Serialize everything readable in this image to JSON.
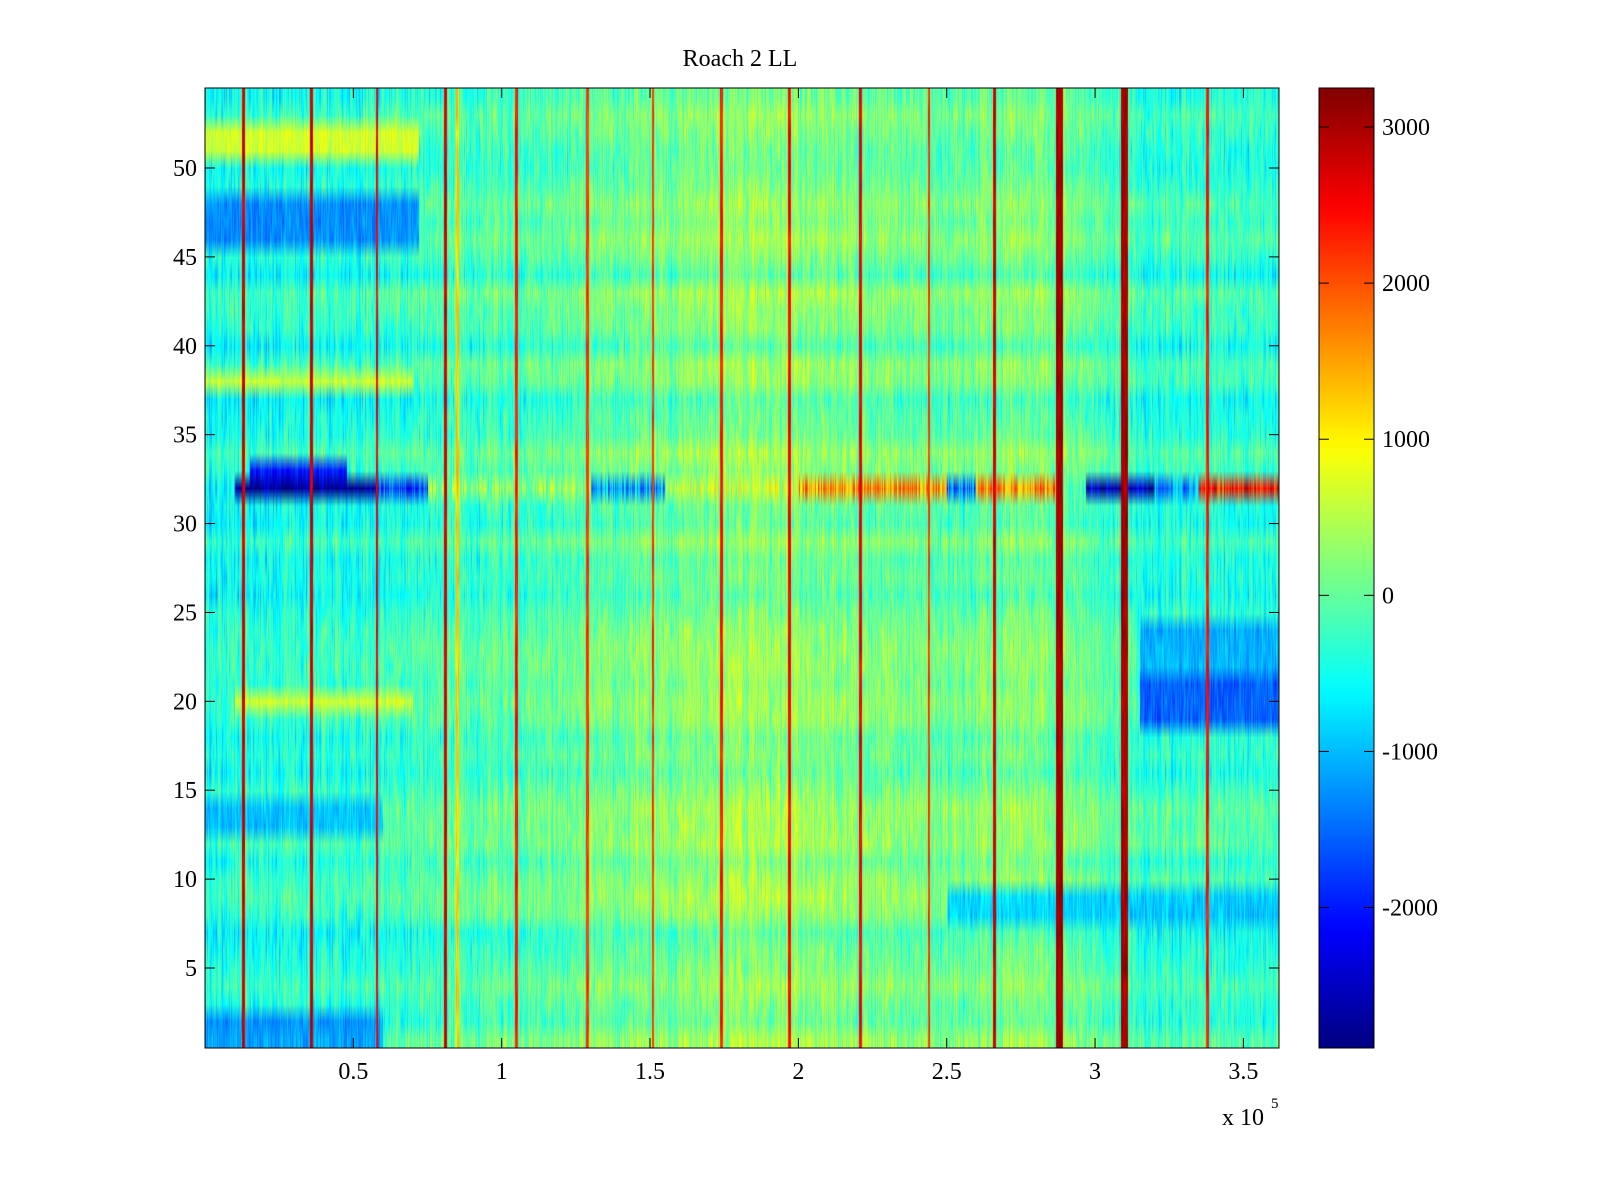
{
  "chart_data": {
    "type": "heatmap",
    "title": "Roach 2 LL",
    "xlabel": "",
    "ylabel": "",
    "x_exponent_label": {
      "base": "x 10",
      "exponent": "5"
    },
    "xlim": [
      0,
      3.62
    ],
    "ylim": [
      0.5,
      54.5
    ],
    "x_ticks": [
      0.5,
      1,
      1.5,
      2,
      2.5,
      3,
      3.5
    ],
    "x_tick_labels": [
      "0.5",
      "1",
      "1.5",
      "2",
      "2.5",
      "3",
      "3.5"
    ],
    "y_ticks": [
      5,
      10,
      15,
      20,
      25,
      30,
      35,
      40,
      45,
      50
    ],
    "y_tick_labels": [
      "5",
      "10",
      "15",
      "20",
      "25",
      "30",
      "35",
      "40",
      "45",
      "50"
    ],
    "rows": 54,
    "colormap": "jet",
    "clim": [
      -2900,
      3250
    ],
    "colorbar": {
      "ticks": [
        -2000,
        -1000,
        0,
        1000,
        2000,
        3000
      ],
      "tick_labels": [
        "-2000",
        "-1000",
        "0",
        "1000",
        "2000",
        "3000"
      ]
    },
    "grid": false,
    "baseline_profile": {
      "x": [
        0,
        0.5,
        1.0,
        1.5,
        1.8,
        2.0,
        2.2,
        2.5,
        2.8,
        3.0,
        3.2,
        3.62
      ],
      "value": [
        -450,
        -350,
        -150,
        50,
        250,
        200,
        100,
        0,
        150,
        -100,
        -300,
        -350
      ]
    },
    "vertical_stripes": [
      {
        "x": 0.13,
        "value": 3000
      },
      {
        "x": 0.36,
        "value": 3000
      },
      {
        "x": 0.58,
        "value": 2800
      },
      {
        "x": 0.81,
        "value": 3000
      },
      {
        "x": 0.85,
        "value": 1500
      },
      {
        "x": 1.05,
        "value": 2600
      },
      {
        "x": 1.29,
        "value": 2400
      },
      {
        "x": 1.51,
        "value": 2400
      },
      {
        "x": 1.74,
        "value": 2600
      },
      {
        "x": 1.97,
        "value": 2700
      },
      {
        "x": 2.21,
        "value": 2800
      },
      {
        "x": 2.44,
        "value": 2400
      },
      {
        "x": 2.66,
        "value": 3000
      },
      {
        "x": 2.88,
        "value": 3250
      },
      {
        "x": 3.1,
        "value": 3250
      },
      {
        "x": 3.38,
        "value": 2600
      }
    ],
    "row_offsets": [
      {
        "rows": [
          1,
          2
        ],
        "x_range": [
          0,
          0.6
        ],
        "value": -1100
      },
      {
        "rows": [
          13,
          14
        ],
        "x_range": [
          0,
          0.6
        ],
        "value": -900
      },
      {
        "rows": [
          8,
          9
        ],
        "x_range": [
          2.5,
          3.62
        ],
        "value": -900
      },
      {
        "rows": [
          19,
          20,
          21
        ],
        "x_range": [
          3.15,
          3.62
        ],
        "value": -1500
      },
      {
        "rows": [
          22,
          23,
          24
        ],
        "x_range": [
          3.15,
          3.62
        ],
        "value": -1000
      },
      {
        "rows": [
          20
        ],
        "x_range": [
          0.1,
          0.7
        ],
        "value": 700
      },
      {
        "rows": [
          38
        ],
        "x_range": [
          0,
          0.7
        ],
        "value": 700
      },
      {
        "rows": [
          46,
          47,
          48
        ],
        "x_range": [
          0,
          0.72
        ],
        "value": -1200
      },
      {
        "rows": [
          51,
          52
        ],
        "x_range": [
          0,
          0.72
        ],
        "value": 800
      },
      {
        "rows": [
          33
        ],
        "x_range": [
          0.15,
          0.48
        ],
        "value": -1900
      }
    ],
    "highlighted_row": {
      "row": 32,
      "segments": [
        {
          "x_range": [
            0.1,
            0.58
          ],
          "value": -2900
        },
        {
          "x_range": [
            0.58,
            0.75
          ],
          "value": -1800
        },
        {
          "x_range": [
            0.75,
            1.3
          ],
          "value": 300
        },
        {
          "x_range": [
            1.3,
            1.55
          ],
          "value": -1200
        },
        {
          "x_range": [
            1.55,
            2.0
          ],
          "value": 600
        },
        {
          "x_range": [
            2.0,
            2.5
          ],
          "value": 1600
        },
        {
          "x_range": [
            2.5,
            2.6
          ],
          "value": -1500
        },
        {
          "x_range": [
            2.6,
            2.88
          ],
          "value": 1700
        },
        {
          "x_range": [
            2.97,
            3.2
          ],
          "value": -2600
        },
        {
          "x_range": [
            3.2,
            3.35
          ],
          "value": -1200
        },
        {
          "x_range": [
            3.35,
            3.62
          ],
          "value": 2400
        }
      ]
    }
  }
}
